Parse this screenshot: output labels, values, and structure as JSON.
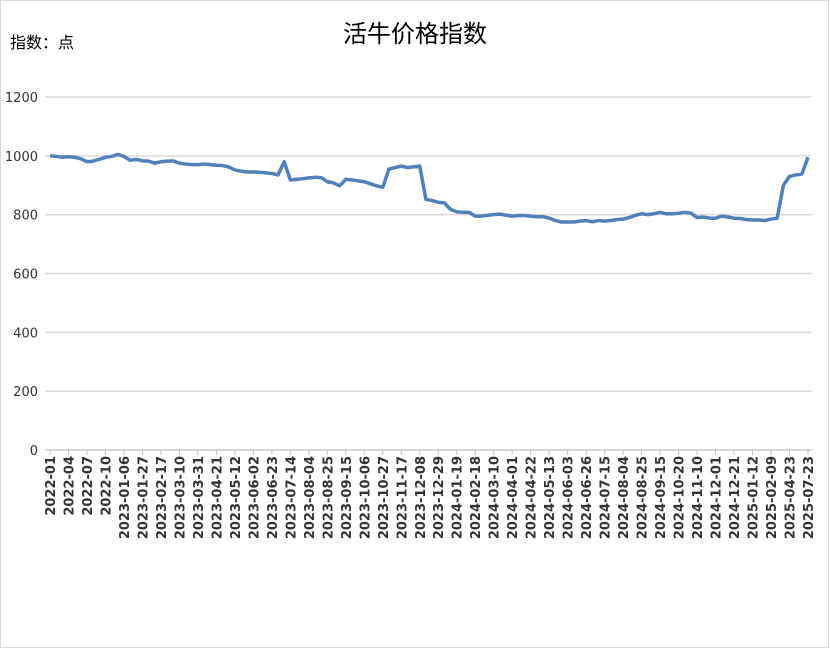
{
  "chart_data": {
    "type": "line",
    "title": "活牛价格指数",
    "y_axis_label": "指数：点",
    "categories": [
      "2022-01",
      null,
      null,
      "2022-04",
      null,
      null,
      "2022-07",
      null,
      null,
      "2022-10",
      null,
      null,
      "2023-01-06",
      null,
      null,
      "2023-01-27",
      null,
      null,
      "2023-02-17",
      null,
      null,
      "2023-03-10",
      null,
      null,
      "2023-03-31",
      null,
      null,
      "2023-04-21",
      null,
      null,
      "2023-05-12",
      null,
      null,
      "2023-06-02",
      null,
      null,
      "2023-06-23",
      null,
      null,
      "2023-07-14",
      null,
      null,
      "2023-08-04",
      null,
      null,
      "2023-08-25",
      null,
      null,
      "2023-09-15",
      null,
      null,
      "2023-10-06",
      null,
      null,
      "2023-10-27",
      null,
      null,
      "2023-11-17",
      null,
      null,
      "2023-12-08",
      null,
      null,
      "2023-12-29",
      null,
      null,
      "2024-01-19",
      null,
      null,
      "2024-02-18",
      null,
      null,
      "2024-03-10",
      null,
      null,
      "2024-04-01",
      null,
      null,
      "2024-04-22",
      null,
      null,
      "2024-05-13",
      null,
      null,
      "2024-06-03",
      null,
      null,
      "2024-06-26",
      null,
      null,
      "2024-07-15",
      null,
      null,
      "2024-08-04",
      null,
      null,
      "2024-08-25",
      null,
      null,
      "2024-09-15",
      null,
      null,
      "2024-10-20",
      null,
      null,
      "2024-11-10",
      null,
      null,
      "2024-12-01",
      null,
      null,
      "2024-12-21",
      null,
      null,
      "2025-01-12",
      null,
      null,
      "2025-02-09",
      null,
      null,
      "2025-04-23",
      null,
      null,
      "2025-07-23"
    ],
    "series": [
      {
        "name": "活牛价格指数",
        "color": "#4f81bd",
        "values": [
          1000,
          998,
          995,
          997,
          995,
          990,
          980,
          982,
          988,
          995,
          998,
          1005,
          998,
          985,
          988,
          983,
          982,
          975,
          980,
          982,
          983,
          975,
          972,
          970,
          970,
          972,
          970,
          968,
          967,
          962,
          952,
          948,
          945,
          945,
          944,
          942,
          940,
          935,
          980,
          918,
          920,
          922,
          925,
          927,
          926,
          912,
          908,
          898,
          920,
          918,
          915,
          912,
          905,
          898,
          893,
          955,
          960,
          965,
          960,
          963,
          965,
          852,
          848,
          842,
          840,
          818,
          810,
          808,
          808,
          795,
          795,
          798,
          800,
          802,
          798,
          795,
          797,
          797,
          795,
          793,
          793,
          788,
          780,
          775,
          775,
          775,
          778,
          780,
          776,
          780,
          778,
          780,
          783,
          785,
          790,
          798,
          803,
          800,
          803,
          808,
          803,
          803,
          805,
          808,
          805,
          790,
          792,
          788,
          788,
          795,
          792,
          788,
          787,
          783,
          782,
          782,
          780,
          785,
          788,
          900,
          930,
          935,
          938,
          995
        ]
      }
    ],
    "ylim": [
      0,
      1200
    ],
    "yticks": [
      0,
      200,
      400,
      600,
      800,
      1000,
      1200
    ],
    "grid": true
  }
}
